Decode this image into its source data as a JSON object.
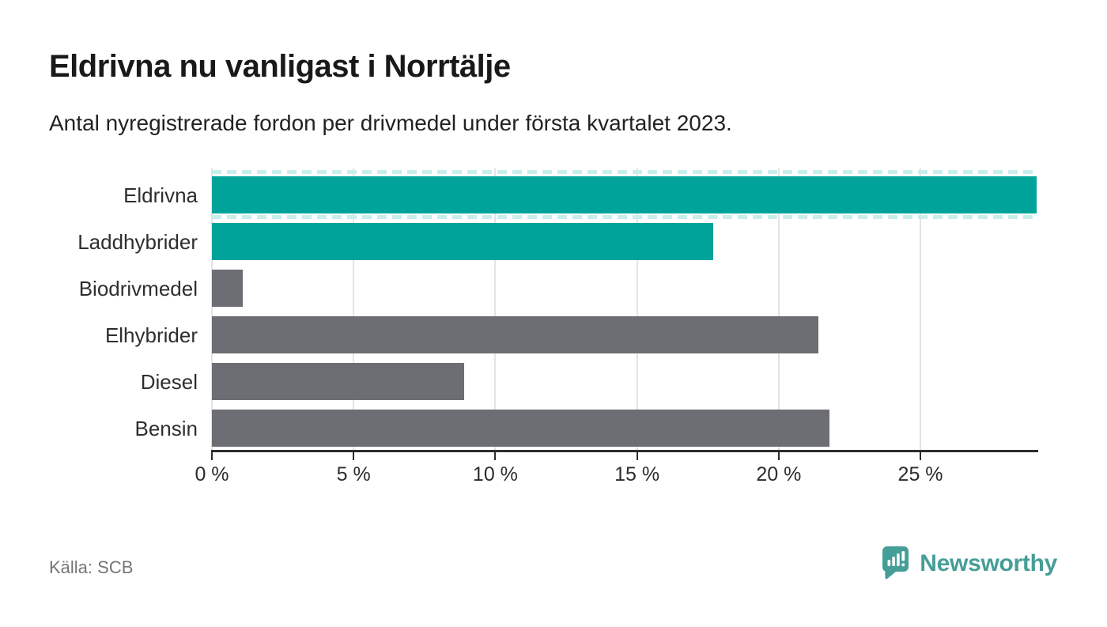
{
  "chart_data": {
    "type": "bar",
    "orientation": "horizontal",
    "title": "Eldrivna nu vanligast i Norrtälje",
    "subtitle": "Antal nyregistrerade fordon per drivmedel under första kvartalet 2023.",
    "categories": [
      "Eldrivna",
      "Laddhybrider",
      "Biodrivmedel",
      "Elhybrider",
      "Diesel",
      "Bensin"
    ],
    "values": [
      29.1,
      17.7,
      1.1,
      21.4,
      8.9,
      21.8
    ],
    "unit": "%",
    "bar_roles": [
      "highlight",
      "highlight",
      "default",
      "default",
      "default",
      "default"
    ],
    "clipped_at_edge": [
      true,
      false,
      false,
      false,
      false,
      false
    ],
    "x_axis": {
      "min": 0,
      "max": 29.1,
      "ticks": [
        0,
        5,
        10,
        15,
        20,
        25
      ],
      "tick_labels": [
        "0 %",
        "5 %",
        "10 %",
        "15 %",
        "20 %",
        "25 %"
      ]
    },
    "xlabel": "",
    "ylabel": "",
    "grid": true,
    "legend": false
  },
  "theme": {
    "highlight_bar_color": "#00a399",
    "default_bar_color": "#6d6d74",
    "clip_dash_color": "#c9eeeb",
    "grid_color": "#e4e4e4",
    "axis_color": "#2d2d2d",
    "label_color": "#2e2e2e",
    "muted_text_color": "#757578",
    "brand_color": "#459e97"
  },
  "footer": {
    "source": "Källa: SCB",
    "brand_name": "Newsworthy"
  }
}
